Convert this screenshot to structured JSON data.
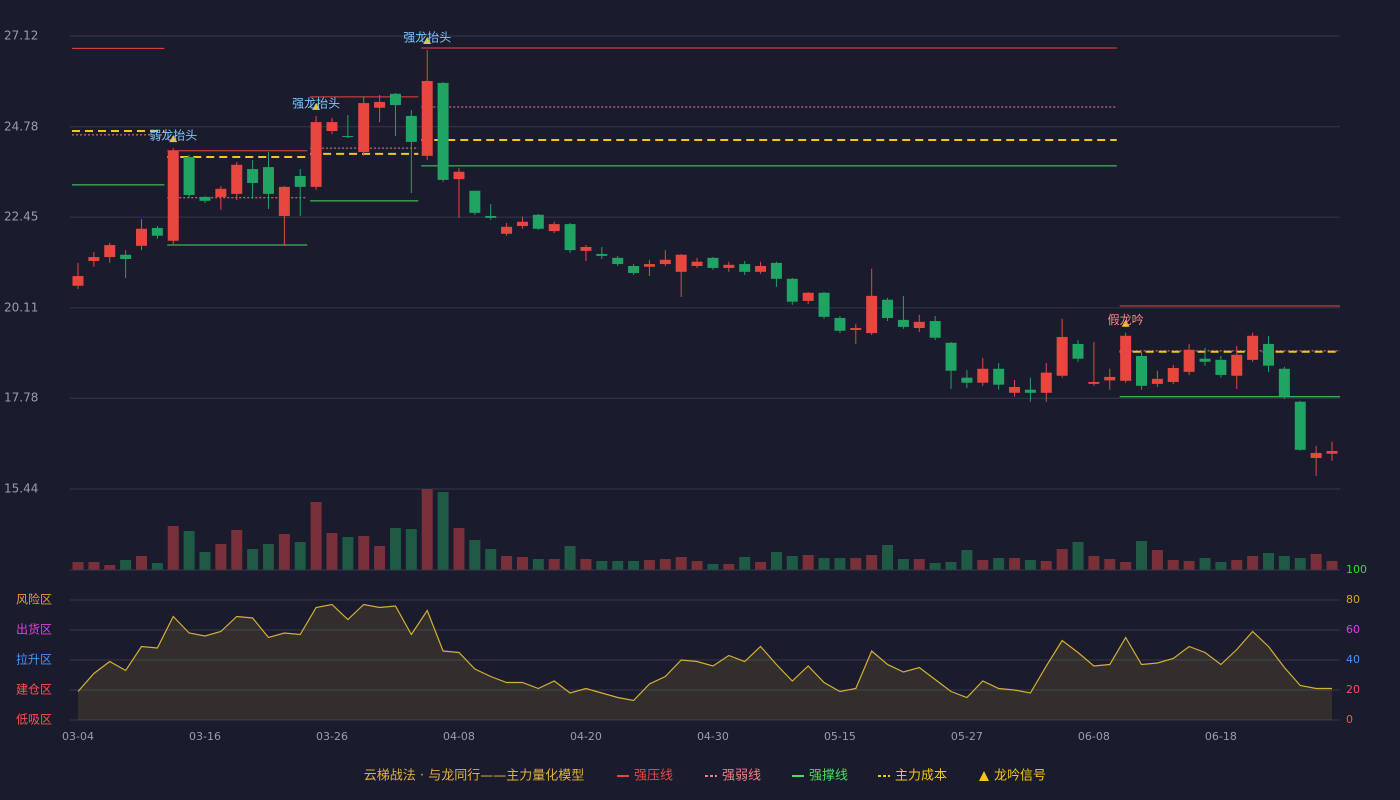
{
  "chart_data": [
    {
      "type": "candlestick",
      "categories": [
        "03-04",
        null,
        null,
        null,
        null,
        null,
        null,
        null,
        "03-16",
        null,
        null,
        null,
        null,
        null,
        null,
        null,
        "03-26",
        null,
        null,
        null,
        null,
        null,
        null,
        null,
        "04-08",
        null,
        null,
        null,
        null,
        null,
        null,
        null,
        "04-20",
        null,
        null,
        null,
        null,
        null,
        null,
        null,
        "04-30",
        null,
        null,
        null,
        null,
        null,
        null,
        null,
        "05-15",
        null,
        null,
        null,
        null,
        null,
        null,
        null,
        "05-27",
        null,
        null,
        null,
        null,
        null,
        null,
        null,
        "06-08",
        null,
        null,
        null,
        null,
        null,
        null,
        null,
        "06-18",
        null,
        null,
        null,
        null,
        null,
        null,
        null
      ],
      "ohlc": [
        [
          20.68,
          21.27,
          20.6,
          20.93
        ],
        [
          21.32,
          21.55,
          21.17,
          21.42
        ],
        [
          21.42,
          21.79,
          21.27,
          21.73
        ],
        [
          21.48,
          21.6,
          20.88,
          21.37
        ],
        [
          21.71,
          22.4,
          21.6,
          22.15
        ],
        [
          22.17,
          22.22,
          21.89,
          21.97
        ],
        [
          21.84,
          24.23,
          21.76,
          24.16
        ],
        [
          24.0,
          24.05,
          22.95,
          23.02
        ],
        [
          22.97,
          22.99,
          22.82,
          22.87
        ],
        [
          22.97,
          23.25,
          22.64,
          23.18
        ],
        [
          23.05,
          23.87,
          22.89,
          23.8
        ],
        [
          23.69,
          23.92,
          22.92,
          23.33
        ],
        [
          23.74,
          24.13,
          22.66,
          23.05
        ],
        [
          22.48,
          23.25,
          21.71,
          23.23
        ],
        [
          23.51,
          23.69,
          22.48,
          23.23
        ],
        [
          23.23,
          25.06,
          23.15,
          24.9
        ],
        [
          24.67,
          25.01,
          24.59,
          24.9
        ],
        [
          24.54,
          25.08,
          24.49,
          24.52
        ],
        [
          24.13,
          25.55,
          24.03,
          25.39
        ],
        [
          25.27,
          25.6,
          24.9,
          25.42
        ],
        [
          25.63,
          25.65,
          24.54,
          25.34
        ],
        [
          25.06,
          25.21,
          23.07,
          24.39
        ],
        [
          24.03,
          26.76,
          23.92,
          25.96
        ],
        [
          25.91,
          25.93,
          23.36,
          23.41
        ],
        [
          23.43,
          23.72,
          22.43,
          23.62
        ],
        [
          23.13,
          23.13,
          22.51,
          22.56
        ],
        [
          22.48,
          22.79,
          22.38,
          22.43
        ],
        [
          22.02,
          22.3,
          21.97,
          22.2
        ],
        [
          22.22,
          22.46,
          22.15,
          22.33
        ],
        [
          22.51,
          22.53,
          22.12,
          22.15
        ],
        [
          22.09,
          22.33,
          22.04,
          22.27
        ],
        [
          22.27,
          22.3,
          21.53,
          21.6
        ],
        [
          21.58,
          21.73,
          21.32,
          21.68
        ],
        [
          21.5,
          21.68,
          21.37,
          21.45
        ],
        [
          21.4,
          21.45,
          21.19,
          21.24
        ],
        [
          21.19,
          21.24,
          20.96,
          21.01
        ],
        [
          21.17,
          21.35,
          20.93,
          21.24
        ],
        [
          21.24,
          21.6,
          21.19,
          21.35
        ],
        [
          21.04,
          21.5,
          20.39,
          21.48
        ],
        [
          21.19,
          21.4,
          21.14,
          21.3
        ],
        [
          21.4,
          21.42,
          21.09,
          21.14
        ],
        [
          21.14,
          21.3,
          21.04,
          21.22
        ],
        [
          21.24,
          21.32,
          20.96,
          21.04
        ],
        [
          21.04,
          21.3,
          20.99,
          21.19
        ],
        [
          21.27,
          21.3,
          20.65,
          20.86
        ],
        [
          20.86,
          20.88,
          20.19,
          20.27
        ],
        [
          20.29,
          20.52,
          20.21,
          20.5
        ],
        [
          20.5,
          20.52,
          19.83,
          19.88
        ],
        [
          19.85,
          19.9,
          19.46,
          19.52
        ],
        [
          19.54,
          19.7,
          19.18,
          19.59
        ],
        [
          19.46,
          21.12,
          19.41,
          20.42
        ],
        [
          20.32,
          20.37,
          19.77,
          19.85
        ],
        [
          19.8,
          20.42,
          19.57,
          19.62
        ],
        [
          19.59,
          19.93,
          19.49,
          19.75
        ],
        [
          19.77,
          19.9,
          19.28,
          19.34
        ],
        [
          19.21,
          19.23,
          18.02,
          18.49
        ],
        [
          18.31,
          18.51,
          18.05,
          18.18
        ],
        [
          18.18,
          18.82,
          18.1,
          18.54
        ],
        [
          18.54,
          18.69,
          18.0,
          18.13
        ],
        [
          17.92,
          18.25,
          17.82,
          18.07
        ],
        [
          18.0,
          18.31,
          17.69,
          17.92
        ],
        [
          17.92,
          18.69,
          17.69,
          18.44
        ],
        [
          18.36,
          19.83,
          18.31,
          19.36
        ],
        [
          19.18,
          19.28,
          18.72,
          18.8
        ],
        [
          18.15,
          19.23,
          18.1,
          18.2
        ],
        [
          18.24,
          18.54,
          18.0,
          18.33
        ],
        [
          18.23,
          19.47,
          18.18,
          19.39
        ],
        [
          18.87,
          18.98,
          18.0,
          18.1
        ],
        [
          18.15,
          18.49,
          18.07,
          18.28
        ],
        [
          18.2,
          18.64,
          18.15,
          18.56
        ],
        [
          18.46,
          19.18,
          18.38,
          19.03
        ],
        [
          18.8,
          19.08,
          18.62,
          18.72
        ],
        [
          18.77,
          18.87,
          18.31,
          18.38
        ],
        [
          18.36,
          19.13,
          18.02,
          18.9
        ],
        [
          18.77,
          19.47,
          18.72,
          19.39
        ],
        [
          19.18,
          19.39,
          18.46,
          18.62
        ],
        [
          18.54,
          18.59,
          17.76,
          17.82
        ],
        [
          17.69,
          17.71,
          16.43,
          16.45
        ],
        [
          16.24,
          16.55,
          15.78,
          16.37
        ],
        [
          16.35,
          16.66,
          16.17,
          16.42
        ]
      ],
      "ylim": [
        15.44,
        27.12
      ],
      "yticks": [
        15.44,
        17.78,
        20.11,
        22.45,
        24.78,
        27.12
      ],
      "grid": true,
      "up_color": "#e8473f",
      "down_color": "#1fa463",
      "levels": [
        {
          "name": "强压线",
          "color": "#e8473f",
          "style": "solid",
          "segments": [
            {
              "start": 0,
              "end": 5,
              "value": 26.8
            },
            {
              "start": 6,
              "end": 14,
              "value": 24.16
            },
            {
              "start": 15,
              "end": 21,
              "value": 25.55
            },
            {
              "start": 22,
              "end": 65,
              "value": 26.81
            },
            {
              "start": 66,
              "end": 79,
              "value": 20.16
            }
          ]
        },
        {
          "name": "强弱线",
          "color": "#f08080",
          "style": "dotted",
          "segments": [
            {
              "start": 0,
              "end": 5,
              "value": 24.57
            },
            {
              "start": 6,
              "end": 14,
              "value": 22.95
            },
            {
              "start": 15,
              "end": 21,
              "value": 24.23
            },
            {
              "start": 22,
              "end": 65,
              "value": 25.29
            },
            {
              "start": 66,
              "end": 79,
              "value": 19.0
            }
          ]
        },
        {
          "name": "强撑线",
          "color": "#4cd964",
          "style": "solid",
          "segments": [
            {
              "start": 0,
              "end": 5,
              "value": 23.28
            },
            {
              "start": 6,
              "end": 14,
              "value": 21.73
            },
            {
              "start": 15,
              "end": 21,
              "value": 22.87
            },
            {
              "start": 22,
              "end": 65,
              "value": 23.77
            },
            {
              "start": 66,
              "end": 79,
              "value": 17.82
            }
          ]
        },
        {
          "name": "主力成本",
          "color": "#f5c518",
          "style": "dashed",
          "segments": [
            {
              "start": 0,
              "end": 5,
              "value": 24.67
            },
            {
              "start": 6,
              "end": 14,
              "value": 24.0
            },
            {
              "start": 15,
              "end": 21,
              "value": 24.08
            },
            {
              "start": 22,
              "end": 65,
              "value": 24.44
            },
            {
              "start": 66,
              "end": 79,
              "value": 18.98
            }
          ]
        }
      ],
      "signals": {
        "name": "龙吟信号",
        "color": "#f5c518",
        "points": [
          {
            "index": 6,
            "label": "弱龙抬头",
            "label_color": "#7cc8ff"
          },
          {
            "index": 15,
            "label": "强龙抬头",
            "label_color": "#7cc8ff"
          },
          {
            "index": 22,
            "label": "强龙抬头",
            "label_color": "#7cc8ff"
          },
          {
            "index": 66,
            "label": "假龙吟",
            "label_color": "#ff8a80"
          }
        ]
      }
    },
    {
      "type": "volume",
      "values": [
        8,
        8,
        5,
        10,
        14,
        7,
        44,
        39,
        18,
        26,
        40,
        21,
        26,
        36,
        28,
        68,
        37,
        33,
        34,
        24,
        42,
        41,
        81,
        78,
        42,
        30,
        21,
        14,
        13,
        11,
        11,
        24,
        11,
        9,
        9,
        9,
        10,
        11,
        13,
        9,
        6,
        6,
        13,
        8,
        18,
        14,
        15,
        12,
        12,
        12,
        15,
        25,
        11,
        11,
        7,
        8,
        20,
        10,
        12,
        12,
        10,
        9,
        21,
        28,
        14,
        11,
        8,
        29,
        20,
        10,
        9,
        12,
        8,
        10,
        14,
        17,
        14,
        12,
        16,
        9
      ],
      "up_color": "#7a3038",
      "down_color": "#1f5a45"
    },
    {
      "type": "line",
      "values": [
        19,
        31,
        39,
        33,
        49,
        48,
        69,
        58,
        56,
        59,
        69,
        68,
        55,
        58,
        57,
        75,
        77,
        67,
        77,
        75,
        76,
        57,
        73,
        46,
        45,
        34,
        29,
        25,
        25,
        21,
        26,
        18,
        21,
        18,
        15,
        13,
        24,
        29,
        40,
        39,
        36,
        43,
        39,
        49,
        37,
        26,
        36,
        25,
        19,
        21,
        46,
        37,
        32,
        35,
        27,
        19,
        15,
        26,
        21,
        20,
        18,
        36,
        53,
        45,
        36,
        37,
        55,
        37,
        38,
        41,
        49,
        45,
        37,
        47,
        59,
        49,
        35,
        23,
        21,
        21
      ],
      "color": "#d4b030",
      "ylim": [
        0,
        100
      ],
      "yticks": [
        0,
        20,
        40,
        60,
        80,
        100
      ],
      "ytick_colors": [
        "#ff5050",
        "#ff5050",
        "#4a90ff",
        "#e040e0",
        "#e0a030",
        "#33dd33"
      ],
      "grid": true,
      "zones": [
        {
          "value": 80,
          "label": "风险区",
          "color": "#e0a030"
        },
        {
          "value": 60,
          "label": "出货区",
          "color": "#e040e0"
        },
        {
          "value": 40,
          "label": "拉升区",
          "color": "#4a90ff"
        },
        {
          "value": 20,
          "label": "建仓区",
          "color": "#ff5050"
        },
        {
          "value": 0,
          "label": "低吸区",
          "color": "#ff5050"
        }
      ]
    }
  ],
  "legend_title": "云梯战法 · 与龙同行——主力量化模型"
}
